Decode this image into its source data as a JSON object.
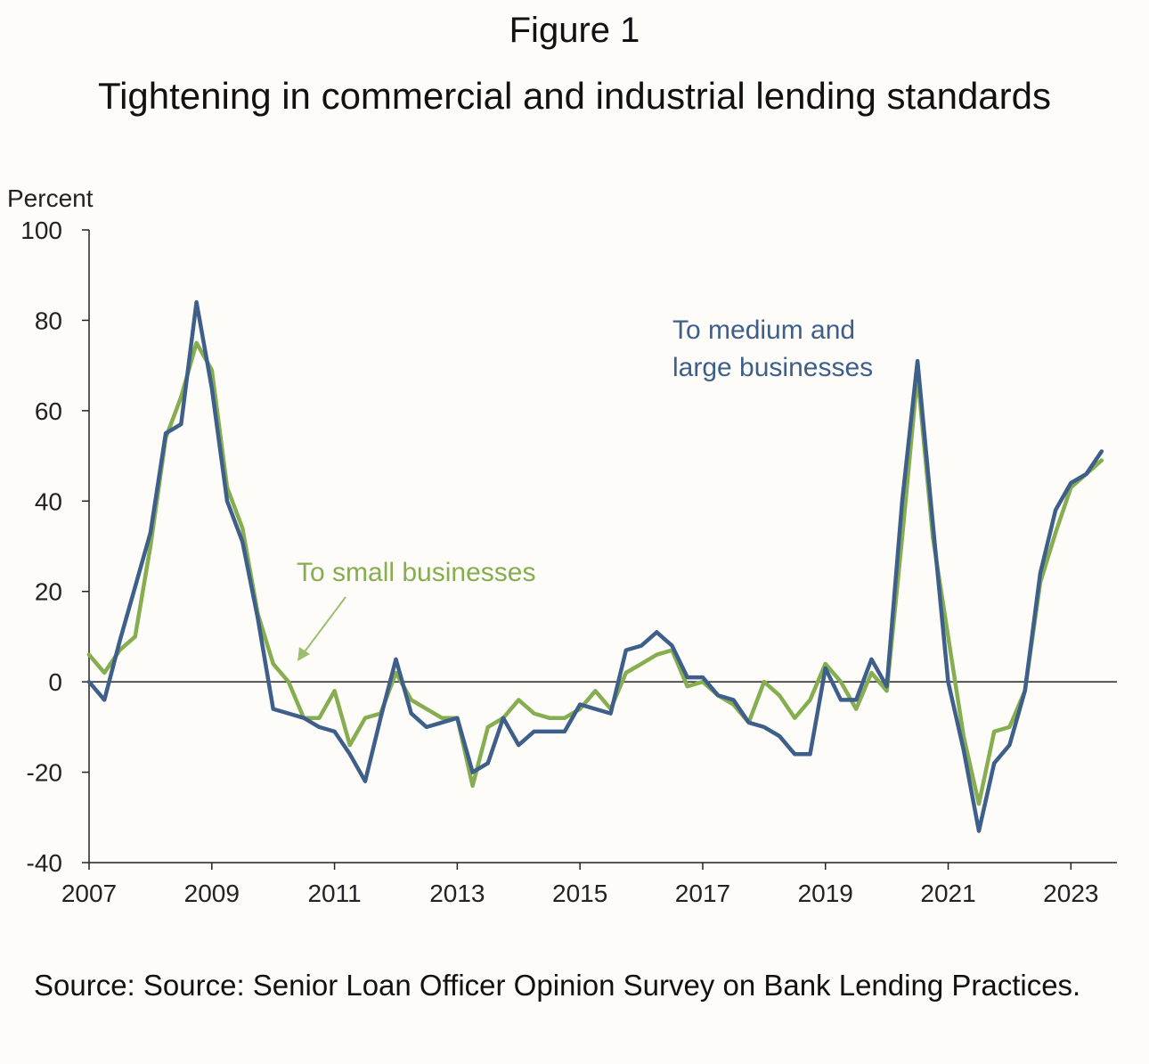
{
  "figure_label": "Figure 1",
  "title": "Tightening in commercial and industrial lending standards",
  "source": "Source: Source: Senior Loan Officer Opinion Survey on Bank Lending Practices.",
  "chart_data": {
    "type": "line",
    "ylabel": "Percent",
    "ylim": [
      -40,
      100
    ],
    "xlim": [
      2007,
      2023.75
    ],
    "yticks": [
      100,
      80,
      60,
      40,
      20,
      0,
      -20,
      -40
    ],
    "xticks": [
      2007,
      2009,
      2011,
      2013,
      2015,
      2017,
      2019,
      2021,
      2023
    ],
    "grid": false,
    "zero_line": true,
    "series": [
      {
        "name": "To medium and large businesses",
        "color": "#3d5f8a",
        "x": [
          2007.0,
          2007.25,
          2007.5,
          2007.75,
          2008.0,
          2008.25,
          2008.5,
          2008.75,
          2009.0,
          2009.25,
          2009.5,
          2009.75,
          2010.0,
          2010.25,
          2010.5,
          2010.75,
          2011.0,
          2011.25,
          2011.5,
          2011.75,
          2012.0,
          2012.25,
          2012.5,
          2012.75,
          2013.0,
          2013.25,
          2013.5,
          2013.75,
          2014.0,
          2014.25,
          2014.5,
          2014.75,
          2015.0,
          2015.25,
          2015.5,
          2015.75,
          2016.0,
          2016.25,
          2016.5,
          2016.75,
          2017.0,
          2017.25,
          2017.5,
          2017.75,
          2018.0,
          2018.25,
          2018.5,
          2018.75,
          2019.0,
          2019.25,
          2019.5,
          2019.75,
          2020.0,
          2020.25,
          2020.5,
          2020.75,
          2021.0,
          2021.25,
          2021.5,
          2021.75,
          2022.0,
          2022.25,
          2022.5,
          2022.75,
          2023.0,
          2023.25,
          2023.5
        ],
        "values": [
          0,
          -4,
          9,
          21,
          33,
          55,
          57,
          84,
          65,
          40,
          31,
          14,
          -6,
          -7,
          -8,
          -10,
          -11,
          -16,
          -22,
          -8,
          5,
          -7,
          -10,
          -9,
          -8,
          -20,
          -18,
          -8,
          -14,
          -11,
          -11,
          -11,
          -5,
          -6,
          -7,
          7,
          8,
          11,
          8,
          1,
          1,
          -3,
          -4,
          -9,
          -10,
          -12,
          -16,
          -16,
          3,
          -4,
          -4,
          5,
          -1,
          40,
          71,
          35,
          0,
          -15,
          -33,
          -18,
          -14,
          -2,
          24,
          38,
          44,
          46,
          51
        ]
      },
      {
        "name": "To small businesses",
        "color": "#86ad4f",
        "x": [
          2007.0,
          2007.25,
          2007.5,
          2007.75,
          2008.0,
          2008.25,
          2008.5,
          2008.75,
          2009.0,
          2009.25,
          2009.5,
          2009.75,
          2010.0,
          2010.25,
          2010.5,
          2010.75,
          2011.0,
          2011.25,
          2011.5,
          2011.75,
          2012.0,
          2012.25,
          2012.5,
          2012.75,
          2013.0,
          2013.25,
          2013.5,
          2013.75,
          2014.0,
          2014.25,
          2014.5,
          2014.75,
          2015.0,
          2015.25,
          2015.5,
          2015.75,
          2016.0,
          2016.25,
          2016.5,
          2016.75,
          2017.0,
          2017.25,
          2017.5,
          2017.75,
          2018.0,
          2018.25,
          2018.5,
          2018.75,
          2019.0,
          2019.25,
          2019.5,
          2019.75,
          2020.0,
          2020.25,
          2020.5,
          2020.75,
          2021.0,
          2021.25,
          2021.5,
          2021.75,
          2022.0,
          2022.25,
          2022.5,
          2022.75,
          2023.0,
          2023.25,
          2023.5
        ],
        "values": [
          6,
          2,
          7,
          10,
          30,
          54,
          63,
          75,
          69,
          43,
          34,
          15,
          4,
          0,
          -8,
          -8,
          -2,
          -14,
          -8,
          -7,
          2,
          -4,
          -6,
          -8,
          -8,
          -23,
          -10,
          -8,
          -4,
          -7,
          -8,
          -8,
          -6,
          -2,
          -6,
          2,
          4,
          6,
          7,
          -1,
          0,
          -3,
          -5,
          -9,
          0,
          -3,
          -8,
          -4,
          4,
          0,
          -6,
          2,
          -2,
          32,
          68,
          32,
          10,
          -12,
          -27,
          -11,
          -10,
          -2,
          22,
          33,
          43,
          46,
          49
        ]
      }
    ],
    "annotations": [
      {
        "text_lines": [
          "To medium and",
          "large businesses"
        ],
        "series": 0
      },
      {
        "text_lines": [
          "To small businesses"
        ],
        "series": 1
      }
    ]
  }
}
